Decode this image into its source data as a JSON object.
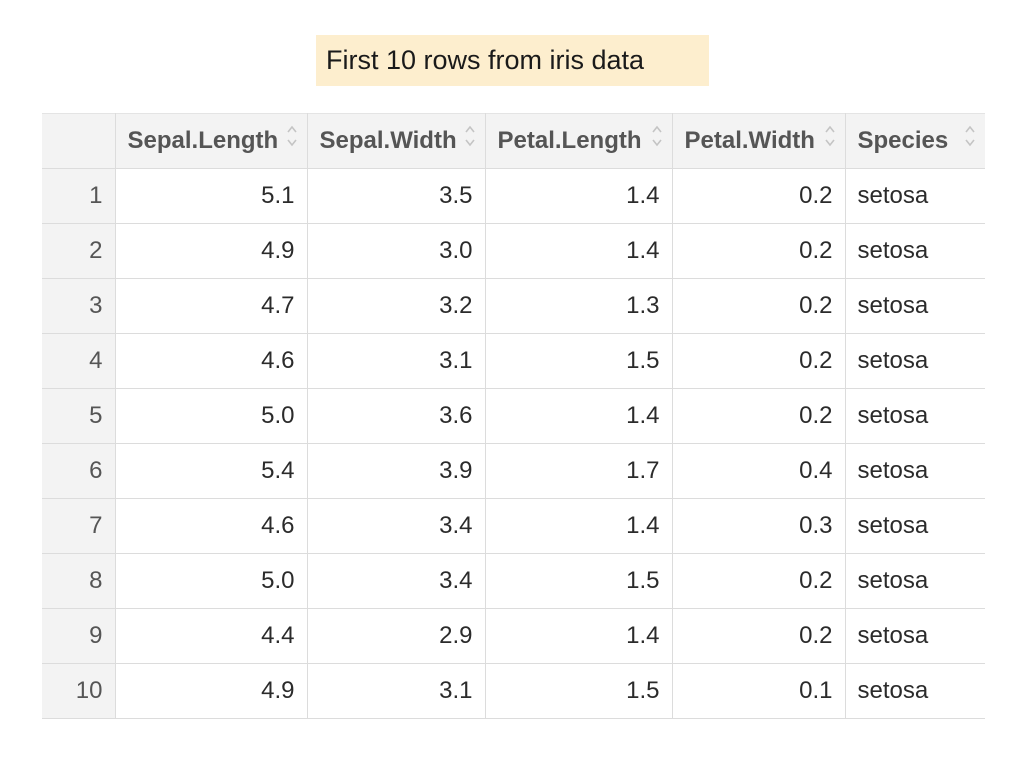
{
  "title": "First 10 rows from iris data",
  "table": {
    "index_header": "",
    "columns": [
      {
        "label": "Sepal.Length",
        "align": "right"
      },
      {
        "label": "Sepal.Width",
        "align": "right"
      },
      {
        "label": "Petal.Length",
        "align": "right"
      },
      {
        "label": "Petal.Width",
        "align": "right"
      },
      {
        "label": "Species",
        "align": "left"
      }
    ],
    "rows": [
      {
        "index": "1",
        "cells": [
          "5.1",
          "3.5",
          "1.4",
          "0.2",
          "setosa"
        ]
      },
      {
        "index": "2",
        "cells": [
          "4.9",
          "3.0",
          "1.4",
          "0.2",
          "setosa"
        ]
      },
      {
        "index": "3",
        "cells": [
          "4.7",
          "3.2",
          "1.3",
          "0.2",
          "setosa"
        ]
      },
      {
        "index": "4",
        "cells": [
          "4.6",
          "3.1",
          "1.5",
          "0.2",
          "setosa"
        ]
      },
      {
        "index": "5",
        "cells": [
          "5.0",
          "3.6",
          "1.4",
          "0.2",
          "setosa"
        ]
      },
      {
        "index": "6",
        "cells": [
          "5.4",
          "3.9",
          "1.7",
          "0.4",
          "setosa"
        ]
      },
      {
        "index": "7",
        "cells": [
          "4.6",
          "3.4",
          "1.4",
          "0.3",
          "setosa"
        ]
      },
      {
        "index": "8",
        "cells": [
          "5.0",
          "3.4",
          "1.5",
          "0.2",
          "setosa"
        ]
      },
      {
        "index": "9",
        "cells": [
          "4.4",
          "2.9",
          "1.4",
          "0.2",
          "setosa"
        ]
      },
      {
        "index": "10",
        "cells": [
          "4.9",
          "3.1",
          "1.5",
          "0.1",
          "setosa"
        ]
      }
    ]
  },
  "colors": {
    "title_background": "#fdeece",
    "header_background": "#f3f3f3",
    "grid_line": "#dcdcdc"
  },
  "icons": {
    "sort": "sort-arrows-icon"
  }
}
